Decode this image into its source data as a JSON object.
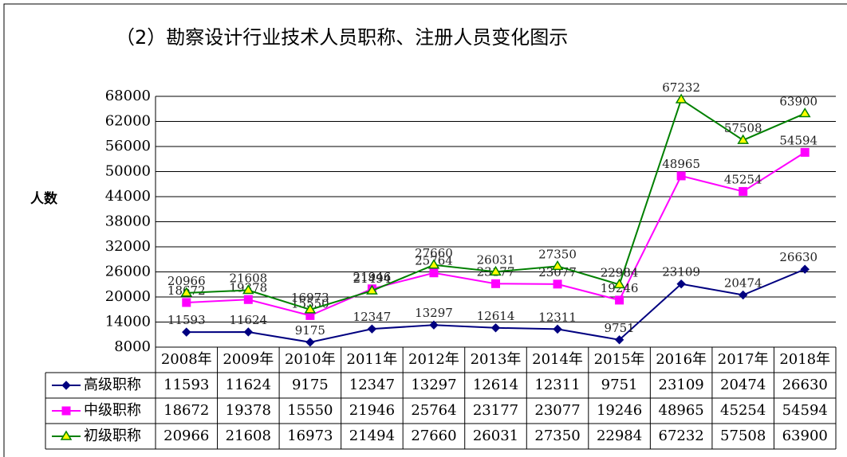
{
  "chart_data": {
    "type": "line",
    "title": "（2）勘察设计行业技术人员职称、注册人员变化图示",
    "y_label": "人数",
    "categories": [
      "2008年",
      "2009年",
      "2010年",
      "2011年",
      "2012年",
      "2013年",
      "2014年",
      "2015年",
      "2016年",
      "2017年",
      "2018年"
    ],
    "series": [
      {
        "name": "高级职称",
        "color": "#000080",
        "marker": "diamond",
        "marker_color": "#000080",
        "values": [
          11593,
          11624,
          9175,
          12347,
          13297,
          12614,
          12311,
          9751,
          23109,
          20474,
          26630
        ]
      },
      {
        "name": "中级职称",
        "color": "#ff00ff",
        "marker": "square",
        "marker_color": "#ff00ff",
        "values": [
          18672,
          19378,
          15550,
          21946,
          25764,
          23177,
          23077,
          19246,
          48965,
          45254,
          54594
        ]
      },
      {
        "name": "初级职称",
        "color": "#008000",
        "marker": "triangle",
        "marker_color": "#ffff00",
        "values": [
          20966,
          21608,
          16973,
          21494,
          27660,
          26031,
          27350,
          22984,
          67232,
          57508,
          63900
        ]
      }
    ],
    "ylim": [
      8000,
      68000
    ],
    "yticks": [
      8000,
      14000,
      20000,
      26000,
      32000,
      38000,
      44000,
      50000,
      56000,
      62000,
      68000
    ],
    "grid": true
  }
}
